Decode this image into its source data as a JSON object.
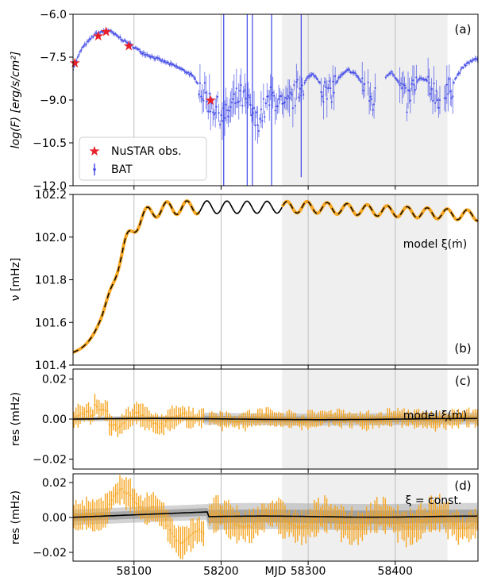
{
  "figure": {
    "xlabel": "MJD",
    "xlim": [
      58030,
      58495
    ],
    "xticks": [
      58100,
      58200,
      58300,
      58400
    ],
    "vgrid": [
      58100,
      58200,
      58300,
      58400
    ],
    "shaded_region": [
      58270,
      58460
    ]
  },
  "chart_data": [
    {
      "id": "a",
      "type": "scatter",
      "panel_label": "(a)",
      "ylabel": "log(F) [erg/s/cm²]",
      "ylim": [
        -12.0,
        -6.0
      ],
      "yticks": [
        -6.0,
        -7.5,
        -9.0,
        -10.5,
        -12.0
      ],
      "ytick_labels": [
        "−6.0",
        "−7.5",
        "−9.0",
        "−10.5",
        "−12.0"
      ],
      "legend": {
        "position": "lower-left",
        "entries": [
          {
            "label": "NuSTAR obs.",
            "marker": "star",
            "color": "#e8202a"
          },
          {
            "label": "BAT",
            "marker": "errorbar",
            "color": "#4a52e8"
          }
        ]
      },
      "series": [
        {
          "name": "NuSTAR obs.",
          "color": "#e8202a",
          "points": [
            [
              58032,
              -7.7
            ],
            [
              58059,
              -6.75
            ],
            [
              58068,
              -6.6
            ],
            [
              58094,
              -7.1
            ],
            [
              58188,
              -9.0
            ]
          ]
        },
        {
          "name": "BAT",
          "color": "#4a52e8",
          "curve": [
            [
              58030,
              -7.9
            ],
            [
              58040,
              -7.2
            ],
            [
              58055,
              -6.7
            ],
            [
              58070,
              -6.55
            ],
            [
              58090,
              -6.95
            ],
            [
              58110,
              -7.35
            ],
            [
              58130,
              -7.6
            ],
            [
              58150,
              -7.85
            ],
            [
              58165,
              -8.1
            ],
            [
              58175,
              -8.45
            ],
            [
              58180,
              -8.8
            ],
            [
              58185,
              -9.0
            ],
            [
              58195,
              -9.3
            ],
            [
              58205,
              -9.6
            ],
            [
              58215,
              -9.1
            ],
            [
              58222,
              -8.85
            ],
            [
              58232,
              -9.2
            ],
            [
              58240,
              -9.8
            ],
            [
              58248,
              -9.4
            ],
            [
              58258,
              -8.9
            ],
            [
              58265,
              -9.0
            ],
            [
              58272,
              -9.4
            ],
            [
              58278,
              -9.15
            ],
            [
              58290,
              -8.6
            ],
            [
              58300,
              -8.2
            ],
            [
              58306,
              -8.1
            ],
            [
              58314,
              -8.4
            ],
            [
              58322,
              -8.9
            ],
            [
              58328,
              -8.6
            ],
            [
              58336,
              -8.2
            ],
            [
              58346,
              -7.95
            ],
            [
              58355,
              -8.1
            ],
            [
              58366,
              -8.6
            ],
            [
              58374,
              -9.1
            ],
            [
              58382,
              -8.6
            ],
            [
              58390,
              -8.15
            ],
            [
              58396,
              -8.0
            ],
            [
              58405,
              -8.45
            ],
            [
              58413,
              -9.1
            ],
            [
              58420,
              -8.6
            ],
            [
              58428,
              -8.25
            ],
            [
              58435,
              -8.3
            ],
            [
              58445,
              -8.7
            ],
            [
              58454,
              -9.05
            ],
            [
              58462,
              -8.7
            ],
            [
              58470,
              -8.2
            ],
            [
              58478,
              -7.85
            ],
            [
              58486,
              -7.65
            ],
            [
              58495,
              -7.55
            ]
          ],
          "gaps": [
            [
              58365,
              58368
            ],
            [
              58378,
              58388
            ],
            [
              58452,
              58456
            ]
          ],
          "large_errors": [
            [
              58203,
              -12.0,
              -6.0
            ],
            [
              58230,
              -12.0,
              -6.0
            ],
            [
              58236,
              -12.0,
              -6.0
            ],
            [
              58258,
              -12.0,
              -6.0
            ],
            [
              58292,
              -11.7,
              -6.0
            ]
          ]
        }
      ]
    },
    {
      "id": "b",
      "type": "line",
      "panel_label": "(b)",
      "annotation": "model ξ(ṁ)",
      "ylabel": "ν [mHz]",
      "ylim": [
        101.4,
        102.2
      ],
      "yticks": [
        101.4,
        101.6,
        101.8,
        102.0,
        102.2
      ],
      "ytick_labels": [
        "101.4",
        "101.6",
        "101.8",
        "102.0",
        "102.2"
      ],
      "series": [
        {
          "name": "data",
          "color": "#f5a623",
          "gaps": [
            [
              58175,
              58270
            ]
          ],
          "x_range": [
            58030,
            58495
          ]
        },
        {
          "name": "model",
          "color": "#000000",
          "x_range": [
            58030,
            58495
          ]
        }
      ]
    },
    {
      "id": "c",
      "type": "scatter",
      "panel_label": "(c)",
      "annotation": "model ξ(ṁ)",
      "ylabel": "res (mHz)",
      "ylim": [
        -0.025,
        0.025
      ],
      "yticks": [
        -0.02,
        0.0,
        0.02
      ],
      "ytick_labels": [
        "−0.02",
        "0.00",
        "0.02"
      ],
      "series": [
        {
          "name": "residuals",
          "color": "#f5a623"
        },
        {
          "name": "model band",
          "color": "#000000"
        }
      ]
    },
    {
      "id": "d",
      "type": "scatter",
      "panel_label": "(d)",
      "annotation": "ξ = const.",
      "ylabel": "res (mHz)",
      "ylim": [
        -0.025,
        0.025
      ],
      "yticks": [
        -0.02,
        0.0,
        0.02
      ],
      "ytick_labels": [
        "−0.02",
        "0.00",
        "0.02"
      ],
      "series": [
        {
          "name": "residuals",
          "color": "#f5a623"
        },
        {
          "name": "model band",
          "color": "#000000"
        }
      ]
    }
  ]
}
